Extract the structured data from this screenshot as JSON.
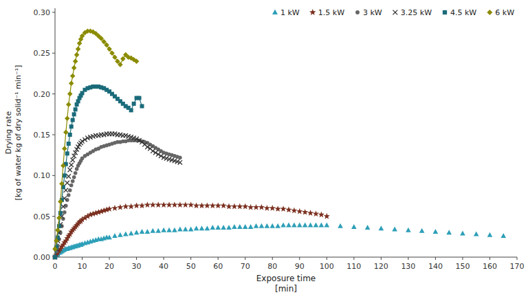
{
  "chart_data": {
    "type": "line",
    "x_label": [
      "Exposure time",
      "[min]"
    ],
    "y_label": [
      "Drying rate",
      "[kg of water kg of dry solid⁻¹ min⁻¹]"
    ],
    "xlim": [
      0,
      170
    ],
    "ylim": [
      0.0,
      0.305
    ],
    "xticks": [
      0,
      10,
      20,
      30,
      40,
      50,
      60,
      70,
      80,
      90,
      100,
      110,
      120,
      130,
      140,
      150,
      160,
      170
    ],
    "yticks": [
      {
        "value": 0.0,
        "label": "0.00"
      },
      {
        "value": 0.05,
        "label": "0.05"
      },
      {
        "value": 0.1,
        "label": "0.10"
      },
      {
        "value": 0.15,
        "label": "0.15"
      },
      {
        "value": 0.2,
        "label": "0.20"
      },
      {
        "value": 0.25,
        "label": "0.25"
      },
      {
        "value": 0.3,
        "label": "0.30"
      }
    ],
    "grid": false,
    "legend": "upper right",
    "series": [
      {
        "name": "1 kW",
        "color": "#2E9FB8",
        "marker": "triangle",
        "line_style": "none",
        "x": [
          0,
          0.5,
          1,
          1.5,
          2,
          2.5,
          3,
          3.5,
          4,
          4.5,
          5,
          5.5,
          6,
          6.5,
          7,
          7.5,
          8,
          8.5,
          9,
          9.5,
          10,
          11,
          12,
          13,
          14,
          15,
          16,
          17,
          18,
          19,
          20,
          22,
          24,
          26,
          28,
          30,
          32,
          34,
          36,
          38,
          40,
          42,
          44,
          46,
          48,
          50,
          52,
          54,
          56,
          58,
          60,
          62,
          64,
          66,
          68,
          70,
          72,
          74,
          76,
          78,
          80,
          82,
          84,
          86,
          88,
          90,
          92,
          94,
          96,
          98,
          100,
          105,
          110,
          115,
          120,
          125,
          130,
          135,
          140,
          145,
          150,
          155,
          160,
          165
        ],
        "values": [
          0.0,
          0.002,
          0.003,
          0.005,
          0.006,
          0.007,
          0.008,
          0.009,
          0.01,
          0.01,
          0.011,
          0.011,
          0.012,
          0.012,
          0.013,
          0.013,
          0.014,
          0.014,
          0.015,
          0.015,
          0.016,
          0.017,
          0.018,
          0.019,
          0.02,
          0.021,
          0.022,
          0.022,
          0.023,
          0.024,
          0.024,
          0.026,
          0.027,
          0.028,
          0.029,
          0.03,
          0.031,
          0.031,
          0.032,
          0.032,
          0.033,
          0.033,
          0.033,
          0.034,
          0.034,
          0.034,
          0.035,
          0.035,
          0.035,
          0.036,
          0.036,
          0.036,
          0.036,
          0.037,
          0.037,
          0.037,
          0.037,
          0.038,
          0.038,
          0.038,
          0.038,
          0.038,
          0.039,
          0.039,
          0.039,
          0.039,
          0.039,
          0.039,
          0.039,
          0.039,
          0.039,
          0.038,
          0.037,
          0.036,
          0.035,
          0.034,
          0.033,
          0.032,
          0.031,
          0.03,
          0.029,
          0.028,
          0.027,
          0.026
        ]
      },
      {
        "name": "1.5 kW",
        "color": "#7B3020",
        "marker": "star",
        "line_style": "none",
        "x": [
          0,
          0.5,
          1,
          1.5,
          2,
          2.5,
          3,
          3.5,
          4,
          4.5,
          5,
          5.5,
          6,
          6.5,
          7,
          7.5,
          8,
          8.5,
          9,
          9.5,
          10,
          11,
          12,
          13,
          14,
          15,
          16,
          17,
          18,
          19,
          20,
          22,
          24,
          26,
          28,
          30,
          32,
          34,
          36,
          38,
          40,
          42,
          44,
          46,
          48,
          50,
          52,
          54,
          56,
          58,
          60,
          62,
          64,
          66,
          68,
          70,
          72,
          74,
          76,
          78,
          80,
          82,
          84,
          86,
          88,
          90,
          92,
          94,
          96,
          98,
          100
        ],
        "values": [
          0.0,
          0.003,
          0.005,
          0.008,
          0.01,
          0.013,
          0.015,
          0.018,
          0.02,
          0.023,
          0.026,
          0.028,
          0.031,
          0.033,
          0.035,
          0.037,
          0.039,
          0.041,
          0.043,
          0.044,
          0.046,
          0.048,
          0.05,
          0.052,
          0.053,
          0.054,
          0.055,
          0.056,
          0.057,
          0.058,
          0.059,
          0.06,
          0.061,
          0.062,
          0.062,
          0.063,
          0.063,
          0.064,
          0.064,
          0.064,
          0.064,
          0.064,
          0.064,
          0.064,
          0.064,
          0.064,
          0.063,
          0.063,
          0.063,
          0.063,
          0.063,
          0.063,
          0.062,
          0.062,
          0.062,
          0.062,
          0.061,
          0.061,
          0.061,
          0.06,
          0.06,
          0.059,
          0.059,
          0.058,
          0.057,
          0.056,
          0.055,
          0.054,
          0.053,
          0.052,
          0.05
        ]
      },
      {
        "name": "3 kW",
        "color": "#666666",
        "marker": "circle",
        "line_style": "none",
        "x": [
          0,
          0.5,
          1,
          1.5,
          2,
          2.5,
          3,
          3.5,
          4,
          4.5,
          5,
          5.5,
          6,
          6.5,
          7,
          7.5,
          8,
          8.5,
          9,
          9.5,
          10,
          11,
          12,
          13,
          14,
          15,
          16,
          17,
          18,
          19,
          20,
          21,
          22,
          23,
          24,
          25,
          26,
          27,
          28,
          29,
          30,
          31,
          32,
          33,
          34,
          35,
          36,
          37,
          38,
          39,
          40,
          41,
          42,
          43,
          44,
          45,
          46
        ],
        "values": [
          0.0,
          0.007,
          0.014,
          0.022,
          0.03,
          0.038,
          0.047,
          0.055,
          0.063,
          0.07,
          0.076,
          0.082,
          0.088,
          0.093,
          0.098,
          0.103,
          0.108,
          0.112,
          0.115,
          0.118,
          0.121,
          0.124,
          0.126,
          0.128,
          0.13,
          0.132,
          0.133,
          0.135,
          0.136,
          0.137,
          0.138,
          0.139,
          0.14,
          0.141,
          0.141,
          0.142,
          0.142,
          0.143,
          0.143,
          0.143,
          0.143,
          0.143,
          0.142,
          0.141,
          0.14,
          0.138,
          0.136,
          0.134,
          0.132,
          0.13,
          0.128,
          0.127,
          0.126,
          0.125,
          0.124,
          0.123,
          0.122
        ]
      },
      {
        "name": "3.25 kW",
        "color": "#333333",
        "marker": "x",
        "line_style": "none",
        "x": [
          0,
          0.5,
          1,
          1.5,
          2,
          2.5,
          3,
          3.5,
          4,
          4.5,
          5,
          5.5,
          6,
          6.5,
          7,
          7.5,
          8,
          8.5,
          9,
          9.5,
          10,
          11,
          12,
          13,
          14,
          15,
          16,
          17,
          18,
          19,
          20,
          21,
          22,
          23,
          24,
          25,
          26,
          27,
          28,
          29,
          30,
          31,
          32,
          33,
          34,
          35,
          36,
          37,
          38,
          39,
          40,
          41,
          42,
          43,
          44,
          45,
          46
        ],
        "values": [
          0.0,
          0.01,
          0.02,
          0.03,
          0.04,
          0.05,
          0.062,
          0.072,
          0.082,
          0.091,
          0.099,
          0.107,
          0.113,
          0.119,
          0.124,
          0.128,
          0.132,
          0.135,
          0.138,
          0.14,
          0.142,
          0.144,
          0.146,
          0.147,
          0.148,
          0.149,
          0.149,
          0.15,
          0.15,
          0.151,
          0.151,
          0.151,
          0.151,
          0.15,
          0.15,
          0.149,
          0.149,
          0.148,
          0.147,
          0.146,
          0.145,
          0.143,
          0.141,
          0.138,
          0.135,
          0.133,
          0.13,
          0.128,
          0.126,
          0.124,
          0.122,
          0.121,
          0.12,
          0.119,
          0.118,
          0.117,
          0.116
        ]
      },
      {
        "name": "4.5 kW",
        "color": "#1A6B7A",
        "marker": "square",
        "line_style": "solid",
        "x": [
          0,
          0.5,
          1,
          1.5,
          2,
          2.5,
          3,
          3.5,
          4,
          4.5,
          5,
          5.5,
          6,
          6.5,
          7,
          7.5,
          8,
          8.5,
          9,
          9.5,
          10,
          11,
          12,
          13,
          14,
          15,
          16,
          17,
          18,
          19,
          20,
          21,
          22,
          23,
          24,
          25,
          26,
          27,
          28,
          29,
          30,
          31,
          32
        ],
        "values": [
          0.0,
          0.012,
          0.024,
          0.038,
          0.054,
          0.07,
          0.086,
          0.1,
          0.114,
          0.127,
          0.139,
          0.15,
          0.16,
          0.168,
          0.175,
          0.181,
          0.187,
          0.191,
          0.195,
          0.198,
          0.201,
          0.205,
          0.207,
          0.208,
          0.209,
          0.209,
          0.209,
          0.208,
          0.207,
          0.205,
          0.203,
          0.2,
          0.197,
          0.194,
          0.191,
          0.188,
          0.185,
          0.183,
          0.18,
          0.188,
          0.195,
          0.195,
          0.185
        ]
      },
      {
        "name": "6 kW",
        "color": "#8B8B00",
        "marker": "diamond",
        "line_style": "solid",
        "x": [
          0,
          0.5,
          1,
          1.5,
          2,
          2.5,
          3,
          3.5,
          4,
          4.5,
          5,
          5.5,
          6,
          6.5,
          7,
          7.5,
          8,
          8.5,
          9,
          9.5,
          10,
          11,
          12,
          13,
          14,
          15,
          16,
          17,
          18,
          19,
          20,
          21,
          22,
          23,
          24,
          25,
          26,
          27,
          28,
          29,
          30
        ],
        "values": [
          0.01,
          0.02,
          0.033,
          0.048,
          0.068,
          0.09,
          0.112,
          0.133,
          0.153,
          0.17,
          0.187,
          0.2,
          0.213,
          0.222,
          0.232,
          0.24,
          0.248,
          0.255,
          0.262,
          0.267,
          0.271,
          0.275,
          0.277,
          0.277,
          0.276,
          0.274,
          0.271,
          0.268,
          0.264,
          0.26,
          0.255,
          0.25,
          0.245,
          0.24,
          0.236,
          0.243,
          0.248,
          0.245,
          0.244,
          0.242,
          0.24
        ]
      }
    ]
  }
}
